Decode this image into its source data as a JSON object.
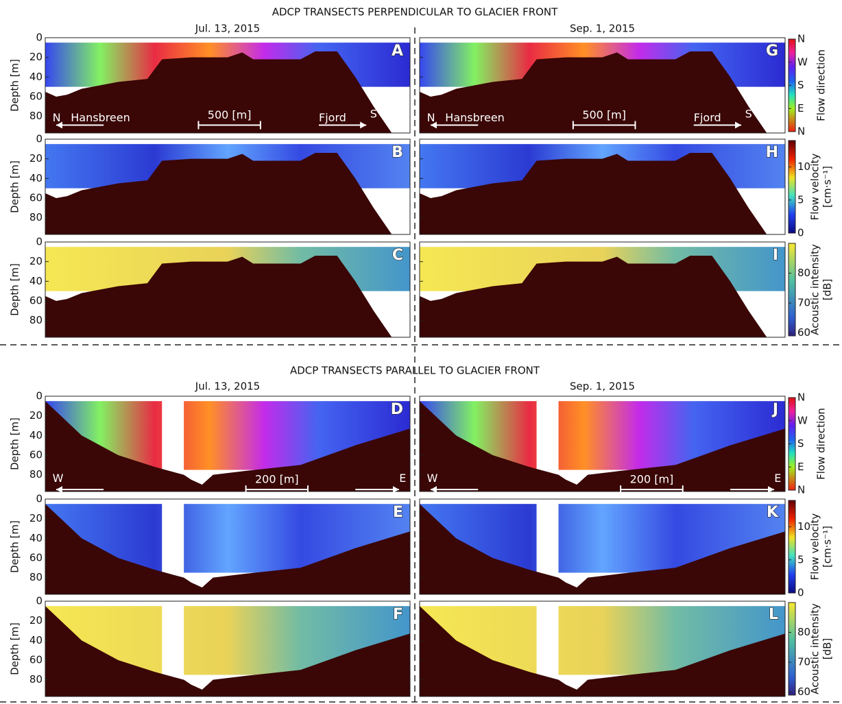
{
  "sections": [
    {
      "title": "ADCP TRANSECTS PERPENDICULAR TO GLACIER FRONT",
      "columns": [
        {
          "date": "Jul. 13, 2015",
          "panels": [
            "A",
            "B",
            "C"
          ]
        },
        {
          "date": "Sep. 1, 2015",
          "panels": [
            "G",
            "H",
            "I"
          ]
        }
      ],
      "annotations": {
        "left": "N",
        "left_label": "Hansbreen",
        "scale": "500 [m]",
        "right_label": "Fjord",
        "right": "S"
      }
    },
    {
      "title": "ADCP TRANSECTS PARALLEL TO GLACIER FRONT",
      "columns": [
        {
          "date": "Jul. 13, 2015",
          "panels": [
            "D",
            "E",
            "F"
          ]
        },
        {
          "date": "Sep. 1, 2015",
          "panels": [
            "J",
            "K",
            "L"
          ]
        }
      ],
      "annotations": {
        "left": "W",
        "scale": "200 [m]",
        "right": "E"
      }
    }
  ],
  "depth_axis": {
    "label": "Depth [m]",
    "ylim": [
      0,
      97
    ],
    "yticks": [
      0,
      20,
      40,
      60,
      80
    ]
  },
  "colorbars": [
    {
      "label_lines": [
        "Flow direction"
      ],
      "clim": [
        0,
        360
      ],
      "ticks": [
        {
          "value": 360,
          "label": "N"
        },
        {
          "value": 270,
          "label": "W"
        },
        {
          "value": 180,
          "label": "S"
        },
        {
          "value": 90,
          "label": "E"
        },
        {
          "value": 0,
          "label": "N"
        }
      ]
    },
    {
      "label_lines": [
        "Flow velocity",
        "[cm·s⁻¹]"
      ],
      "clim": [
        0,
        14
      ],
      "ticks": [
        0,
        5,
        10
      ]
    },
    {
      "label_lines": [
        "Acoustic intensity",
        "[dB]"
      ],
      "clim": [
        59,
        90
      ],
      "ticks": [
        60,
        70,
        80
      ]
    }
  ]
}
